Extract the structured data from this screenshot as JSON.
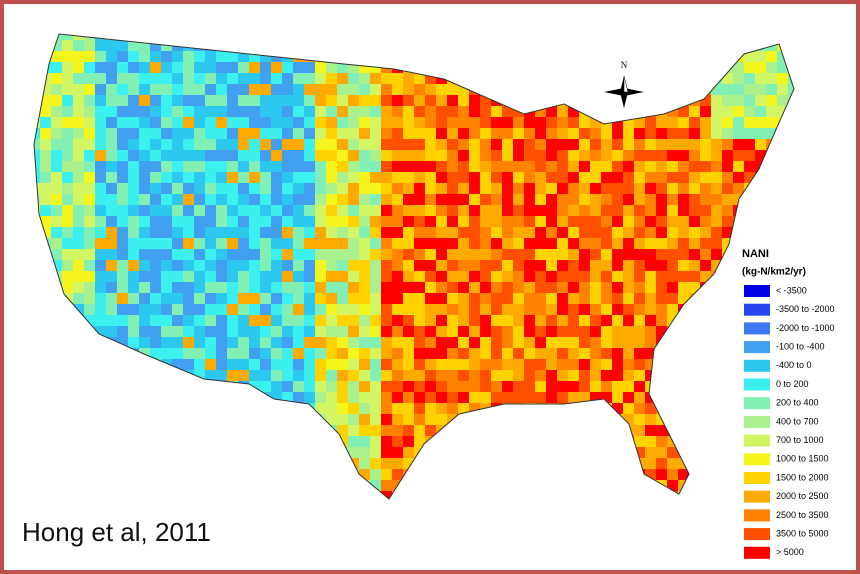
{
  "map": {
    "compass": "N",
    "citation": "Hong et al, 2011",
    "legend": {
      "title": "NANI",
      "units": "(kg-N/km2/yr)",
      "entries": [
        {
          "label": "< -3500",
          "color": "#0000e6"
        },
        {
          "label": "-3500 to -2000",
          "color": "#2846f0"
        },
        {
          "label": "-2000 to -1000",
          "color": "#3c78f0"
        },
        {
          "label": "-100 to -400",
          "color": "#41a0f0"
        },
        {
          "label": "-400 to 0",
          "color": "#2dc8f0"
        },
        {
          "label": "0 to 200",
          "color": "#3cf0f0"
        },
        {
          "label": "200 to 400",
          "color": "#82f0b4"
        },
        {
          "label": "400 to 700",
          "color": "#aaf08c"
        },
        {
          "label": "700 to 1000",
          "color": "#d2f564"
        },
        {
          "label": "1000 to 1500",
          "color": "#f5f51e"
        },
        {
          "label": "1500 to 2000",
          "color": "#ffd200"
        },
        {
          "label": "2000 to 2500",
          "color": "#ffaa00"
        },
        {
          "label": "2500 to 3500",
          "color": "#ff8200"
        },
        {
          "label": "3500 to 5000",
          "color": "#ff5000"
        },
        {
          "label": "> 5000",
          "color": "#ff0000"
        }
      ]
    }
  }
}
